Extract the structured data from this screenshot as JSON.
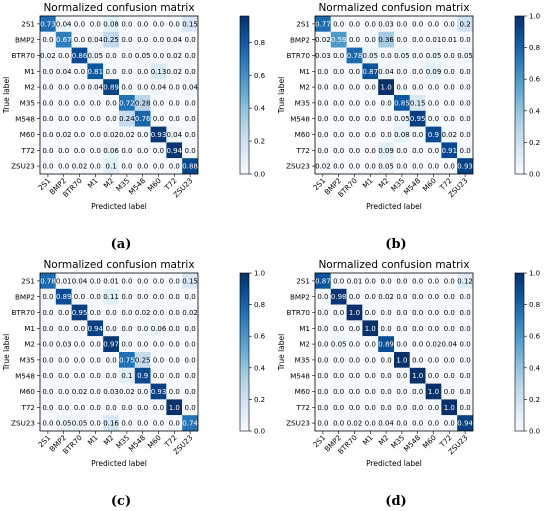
{
  "chart_data": [
    {
      "type": "heatmap",
      "panel_label": "(a)",
      "title": "Normalized confusion matrix",
      "xlabel": "Predicted label",
      "ylabel": "True label",
      "labels": [
        "2S1",
        "BMP2",
        "BTR70",
        "M1",
        "M2",
        "M35",
        "M548",
        "M60",
        "T72",
        "ZSU23"
      ],
      "colorbar": {
        "ticks": [
          "0.0",
          "0.2",
          "0.4",
          "0.6",
          "0.8"
        ],
        "vmin": 0,
        "vmax": 0.96,
        "colormap": "Blues"
      },
      "cells": [
        [
          "0.73",
          "0.04",
          "0.0",
          "0.0",
          "0.08",
          "0.0",
          "0.0",
          "0.0",
          "0.0",
          "0.15"
        ],
        [
          "0.0",
          "0.67",
          "0.0",
          "0.04",
          "0.25",
          "0.0",
          "0.0",
          "0.0",
          "0.04",
          "0.0"
        ],
        [
          "0.02",
          "0.0",
          "0.86",
          "0.05",
          "0.0",
          "0.0",
          "0.05",
          "0.0",
          "0.02",
          "0.0"
        ],
        [
          "0.0",
          "0.04",
          "0.0",
          "0.81",
          "0.0",
          "0.0",
          "0.0",
          "0.13",
          "0.02",
          "0.0"
        ],
        [
          "0.0",
          "0.0",
          "0.0",
          "0.04",
          "0.89",
          "0.0",
          "0.0",
          "0.04",
          "0.0",
          "0.04"
        ],
        [
          "0.0",
          "0.0",
          "0.0",
          "0.0",
          "0.0",
          "0.72",
          "0.28",
          "0.0",
          "0.0",
          "0.0"
        ],
        [
          "0.0",
          "0.0",
          "0.0",
          "0.0",
          "0.0",
          "0.24",
          "0.76",
          "0.0",
          "0.0",
          "0.0"
        ],
        [
          "0.0",
          "0.02",
          "0.0",
          "0.0",
          "0.02",
          "0.02",
          "0.0",
          "0.93",
          "0.04",
          "0.0"
        ],
        [
          "0.0",
          "0.0",
          "0.0",
          "0.0",
          "0.06",
          "0.0",
          "0.0",
          "0.0",
          "0.94",
          "0.0"
        ],
        [
          "0.0",
          "0.0",
          "0.02",
          "0.0",
          "0.1",
          "0.0",
          "0.0",
          "0.0",
          "0.0",
          "0.88"
        ]
      ]
    },
    {
      "type": "heatmap",
      "panel_label": "(b)",
      "title": "Normalized confusion matrix",
      "xlabel": "Predicted label",
      "ylabel": "True label",
      "labels": [
        "2S1",
        "BMP2",
        "BTR70",
        "M1",
        "M2",
        "M35",
        "M548",
        "M60",
        "T72",
        "ZSU23"
      ],
      "colorbar": {
        "ticks": [
          "0.0",
          "0.2",
          "0.4",
          "0.6",
          "0.8",
          "1.0"
        ],
        "vmin": 0,
        "vmax": 1.0,
        "colormap": "Blues"
      },
      "cells": [
        [
          "0.77",
          "0.0",
          "0.0",
          "0.0",
          "0.03",
          "0.0",
          "0.0",
          "0.0",
          "0.0",
          "0.2"
        ],
        [
          "0.02",
          "0.59",
          "0.0",
          "0.0",
          "0.36",
          "0.0",
          "0.0",
          "0.01",
          "0.01",
          "0.0"
        ],
        [
          "0.03",
          "0.0",
          "0.78",
          "0.05",
          "0.0",
          "0.05",
          "0.0",
          "0.05",
          "0.0",
          "0.05"
        ],
        [
          "0.0",
          "0.0",
          "0.0",
          "0.87",
          "0.04",
          "0.0",
          "0.0",
          "0.09",
          "0.0",
          "0.0"
        ],
        [
          "0.0",
          "0.0",
          "0.0",
          "0.0",
          "1.0",
          "0.0",
          "0.0",
          "0.0",
          "0.0",
          "0.0"
        ],
        [
          "0.0",
          "0.0",
          "0.0",
          "0.0",
          "0.0",
          "0.85",
          "0.15",
          "0.0",
          "0.0",
          "0.0"
        ],
        [
          "0.0",
          "0.0",
          "0.0",
          "0.0",
          "0.0",
          "0.05",
          "0.95",
          "0.0",
          "0.0",
          "0.0"
        ],
        [
          "0.0",
          "0.0",
          "0.0",
          "0.0",
          "0.0",
          "0.08",
          "0.0",
          "0.9",
          "0.02",
          "0.0"
        ],
        [
          "0.0",
          "0.0",
          "0.0",
          "0.0",
          "0.09",
          "0.0",
          "0.0",
          "0.0",
          "0.91",
          "0.0"
        ],
        [
          "0.02",
          "0.0",
          "0.0",
          "0.0",
          "0.05",
          "0.0",
          "0.0",
          "0.0",
          "0.0",
          "0.93"
        ]
      ]
    },
    {
      "type": "heatmap",
      "panel_label": "(c)",
      "title": "Normalized confusion matrix",
      "xlabel": "Predicted label",
      "ylabel": "True label",
      "labels": [
        "2S1",
        "BMP2",
        "BTR70",
        "M1",
        "M2",
        "M35",
        "M548",
        "M60",
        "T72",
        "ZSU23"
      ],
      "colorbar": {
        "ticks": [
          "0.0",
          "0.2",
          "0.4",
          "0.6",
          "0.8",
          "1.0"
        ],
        "vmin": 0,
        "vmax": 1.0,
        "colormap": "Blues"
      },
      "cells": [
        [
          "0.78",
          "0.01",
          "0.04",
          "0.0",
          "0.01",
          "0.0",
          "0.0",
          "0.0",
          "0.0",
          "0.15"
        ],
        [
          "0.0",
          "0.89",
          "0.0",
          "0.0",
          "0.11",
          "0.0",
          "0.0",
          "0.0",
          "0.0",
          "0.0"
        ],
        [
          "0.0",
          "0.0",
          "0.95",
          "0.0",
          "0.0",
          "0.0",
          "0.02",
          "0.0",
          "0.0",
          "0.02"
        ],
        [
          "0.0",
          "0.0",
          "0.0",
          "0.94",
          "0.0",
          "0.0",
          "0.0",
          "0.06",
          "0.0",
          "0.0"
        ],
        [
          "0.0",
          "0.03",
          "0.0",
          "0.0",
          "0.97",
          "0.0",
          "0.0",
          "0.0",
          "0.0",
          "0.0"
        ],
        [
          "0.0",
          "0.0",
          "0.0",
          "0.0",
          "0.0",
          "0.75",
          "0.25",
          "0.0",
          "0.0",
          "0.0"
        ],
        [
          "0.0",
          "0.0",
          "0.0",
          "0.0",
          "0.0",
          "0.1",
          "0.9",
          "0.0",
          "0.0",
          "0.0"
        ],
        [
          "0.0",
          "0.0",
          "0.02",
          "0.0",
          "0.03",
          "0.02",
          "0.0",
          "0.93",
          "0.0",
          "0.0"
        ],
        [
          "0.0",
          "0.0",
          "0.0",
          "0.0",
          "0.0",
          "0.0",
          "0.0",
          "0.0",
          "1.0",
          "0.0"
        ],
        [
          "0.0",
          "0.05",
          "0.05",
          "0.0",
          "0.16",
          "0.0",
          "0.0",
          "0.0",
          "0.0",
          "0.74"
        ]
      ]
    },
    {
      "type": "heatmap",
      "panel_label": "(d)",
      "title": "Normalized confusion matrix",
      "xlabel": "Predicted label",
      "ylabel": "True label",
      "labels": [
        "2S1",
        "BMP2",
        "BTR70",
        "M1",
        "M2",
        "M35",
        "M548",
        "M60",
        "T72",
        "ZSU23"
      ],
      "colorbar": {
        "ticks": [
          "0.0",
          "0.2",
          "0.4",
          "0.6",
          "0.8",
          "1.0"
        ],
        "vmin": 0,
        "vmax": 1.0,
        "colormap": "Blues"
      },
      "cells": [
        [
          "0.87",
          "0.0",
          "0.01",
          "0.0",
          "0.0",
          "0.0",
          "0.0",
          "0.0",
          "0.0",
          "0.12"
        ],
        [
          "0.0",
          "0.98",
          "0.0",
          "0.0",
          "0.02",
          "0.0",
          "0.0",
          "0.0",
          "0.0",
          "0.0"
        ],
        [
          "0.0",
          "0.0",
          "1.0",
          "0.0",
          "0.0",
          "0.0",
          "0.0",
          "0.0",
          "0.0",
          "0.0"
        ],
        [
          "0.0",
          "0.0",
          "0.0",
          "1.0",
          "0.0",
          "0.0",
          "0.0",
          "0.0",
          "0.0",
          "0.0"
        ],
        [
          "0.0",
          "0.05",
          "0.0",
          "0.0",
          "0.89",
          "0.0",
          "0.0",
          "0.02",
          "0.04",
          "0.0"
        ],
        [
          "0.0",
          "0.0",
          "0.0",
          "0.0",
          "0.0",
          "1.0",
          "0.0",
          "0.0",
          "0.0",
          "0.0"
        ],
        [
          "0.0",
          "0.0",
          "0.0",
          "0.0",
          "0.0",
          "0.0",
          "1.0",
          "0.0",
          "0.0",
          "0.0"
        ],
        [
          "0.0",
          "0.0",
          "0.0",
          "0.0",
          "0.0",
          "0.0",
          "0.0",
          "1.0",
          "0.0",
          "0.0"
        ],
        [
          "0.0",
          "0.0",
          "0.0",
          "0.0",
          "0.0",
          "0.0",
          "0.0",
          "0.0",
          "1.0",
          "0.0"
        ],
        [
          "0.0",
          "0.0",
          "0.02",
          "0.0",
          "0.04",
          "0.0",
          "0.0",
          "0.0",
          "0.0",
          "0.94"
        ]
      ]
    }
  ]
}
